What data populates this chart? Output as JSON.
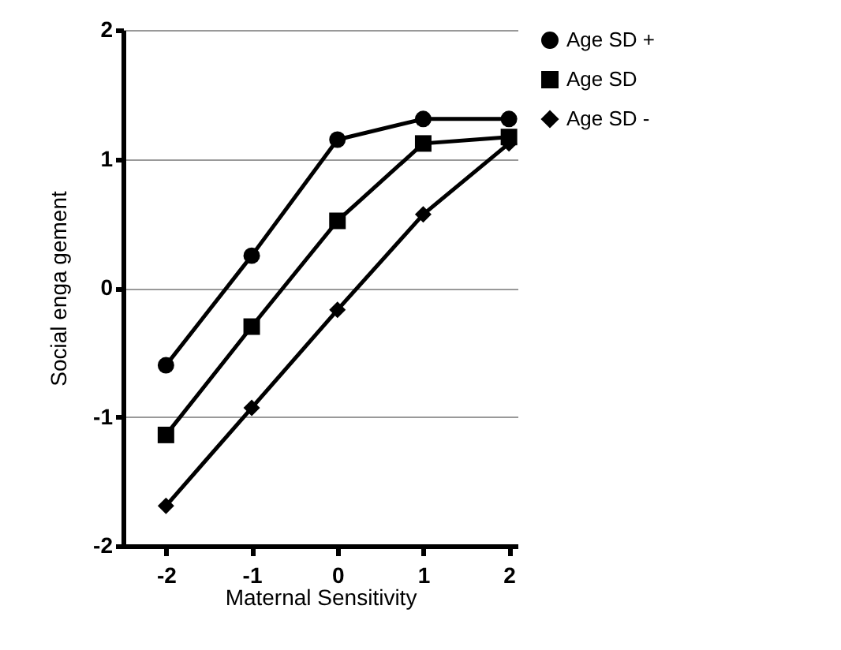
{
  "chart_data": {
    "type": "line",
    "xlabel": "Maternal Sensitivity",
    "ylabel": "Social  enga gement",
    "x": [
      -2,
      -1,
      0,
      1,
      2
    ],
    "xlim": [
      -2.5,
      2.1
    ],
    "xticks": [
      -2,
      -1,
      0,
      1,
      2
    ],
    "ylim": [
      -2,
      2
    ],
    "yticks": [
      -2,
      -1,
      0,
      1,
      2
    ],
    "grid": "y",
    "legend": "top right",
    "line_style": "solid",
    "series": [
      {
        "name": "Age SD +",
        "color": "#000000",
        "marker": "circle",
        "values": [
          -0.6,
          0.25,
          1.15,
          1.31,
          1.31
        ]
      },
      {
        "name": "Age SD",
        "color": "#000000",
        "marker": "square",
        "values": [
          -1.14,
          -0.3,
          0.52,
          1.12,
          1.17
        ]
      },
      {
        "name": "Age SD -",
        "color": "#000000",
        "marker": "diamond",
        "values": [
          -1.69,
          -0.93,
          -0.17,
          0.57,
          1.12
        ]
      }
    ]
  }
}
